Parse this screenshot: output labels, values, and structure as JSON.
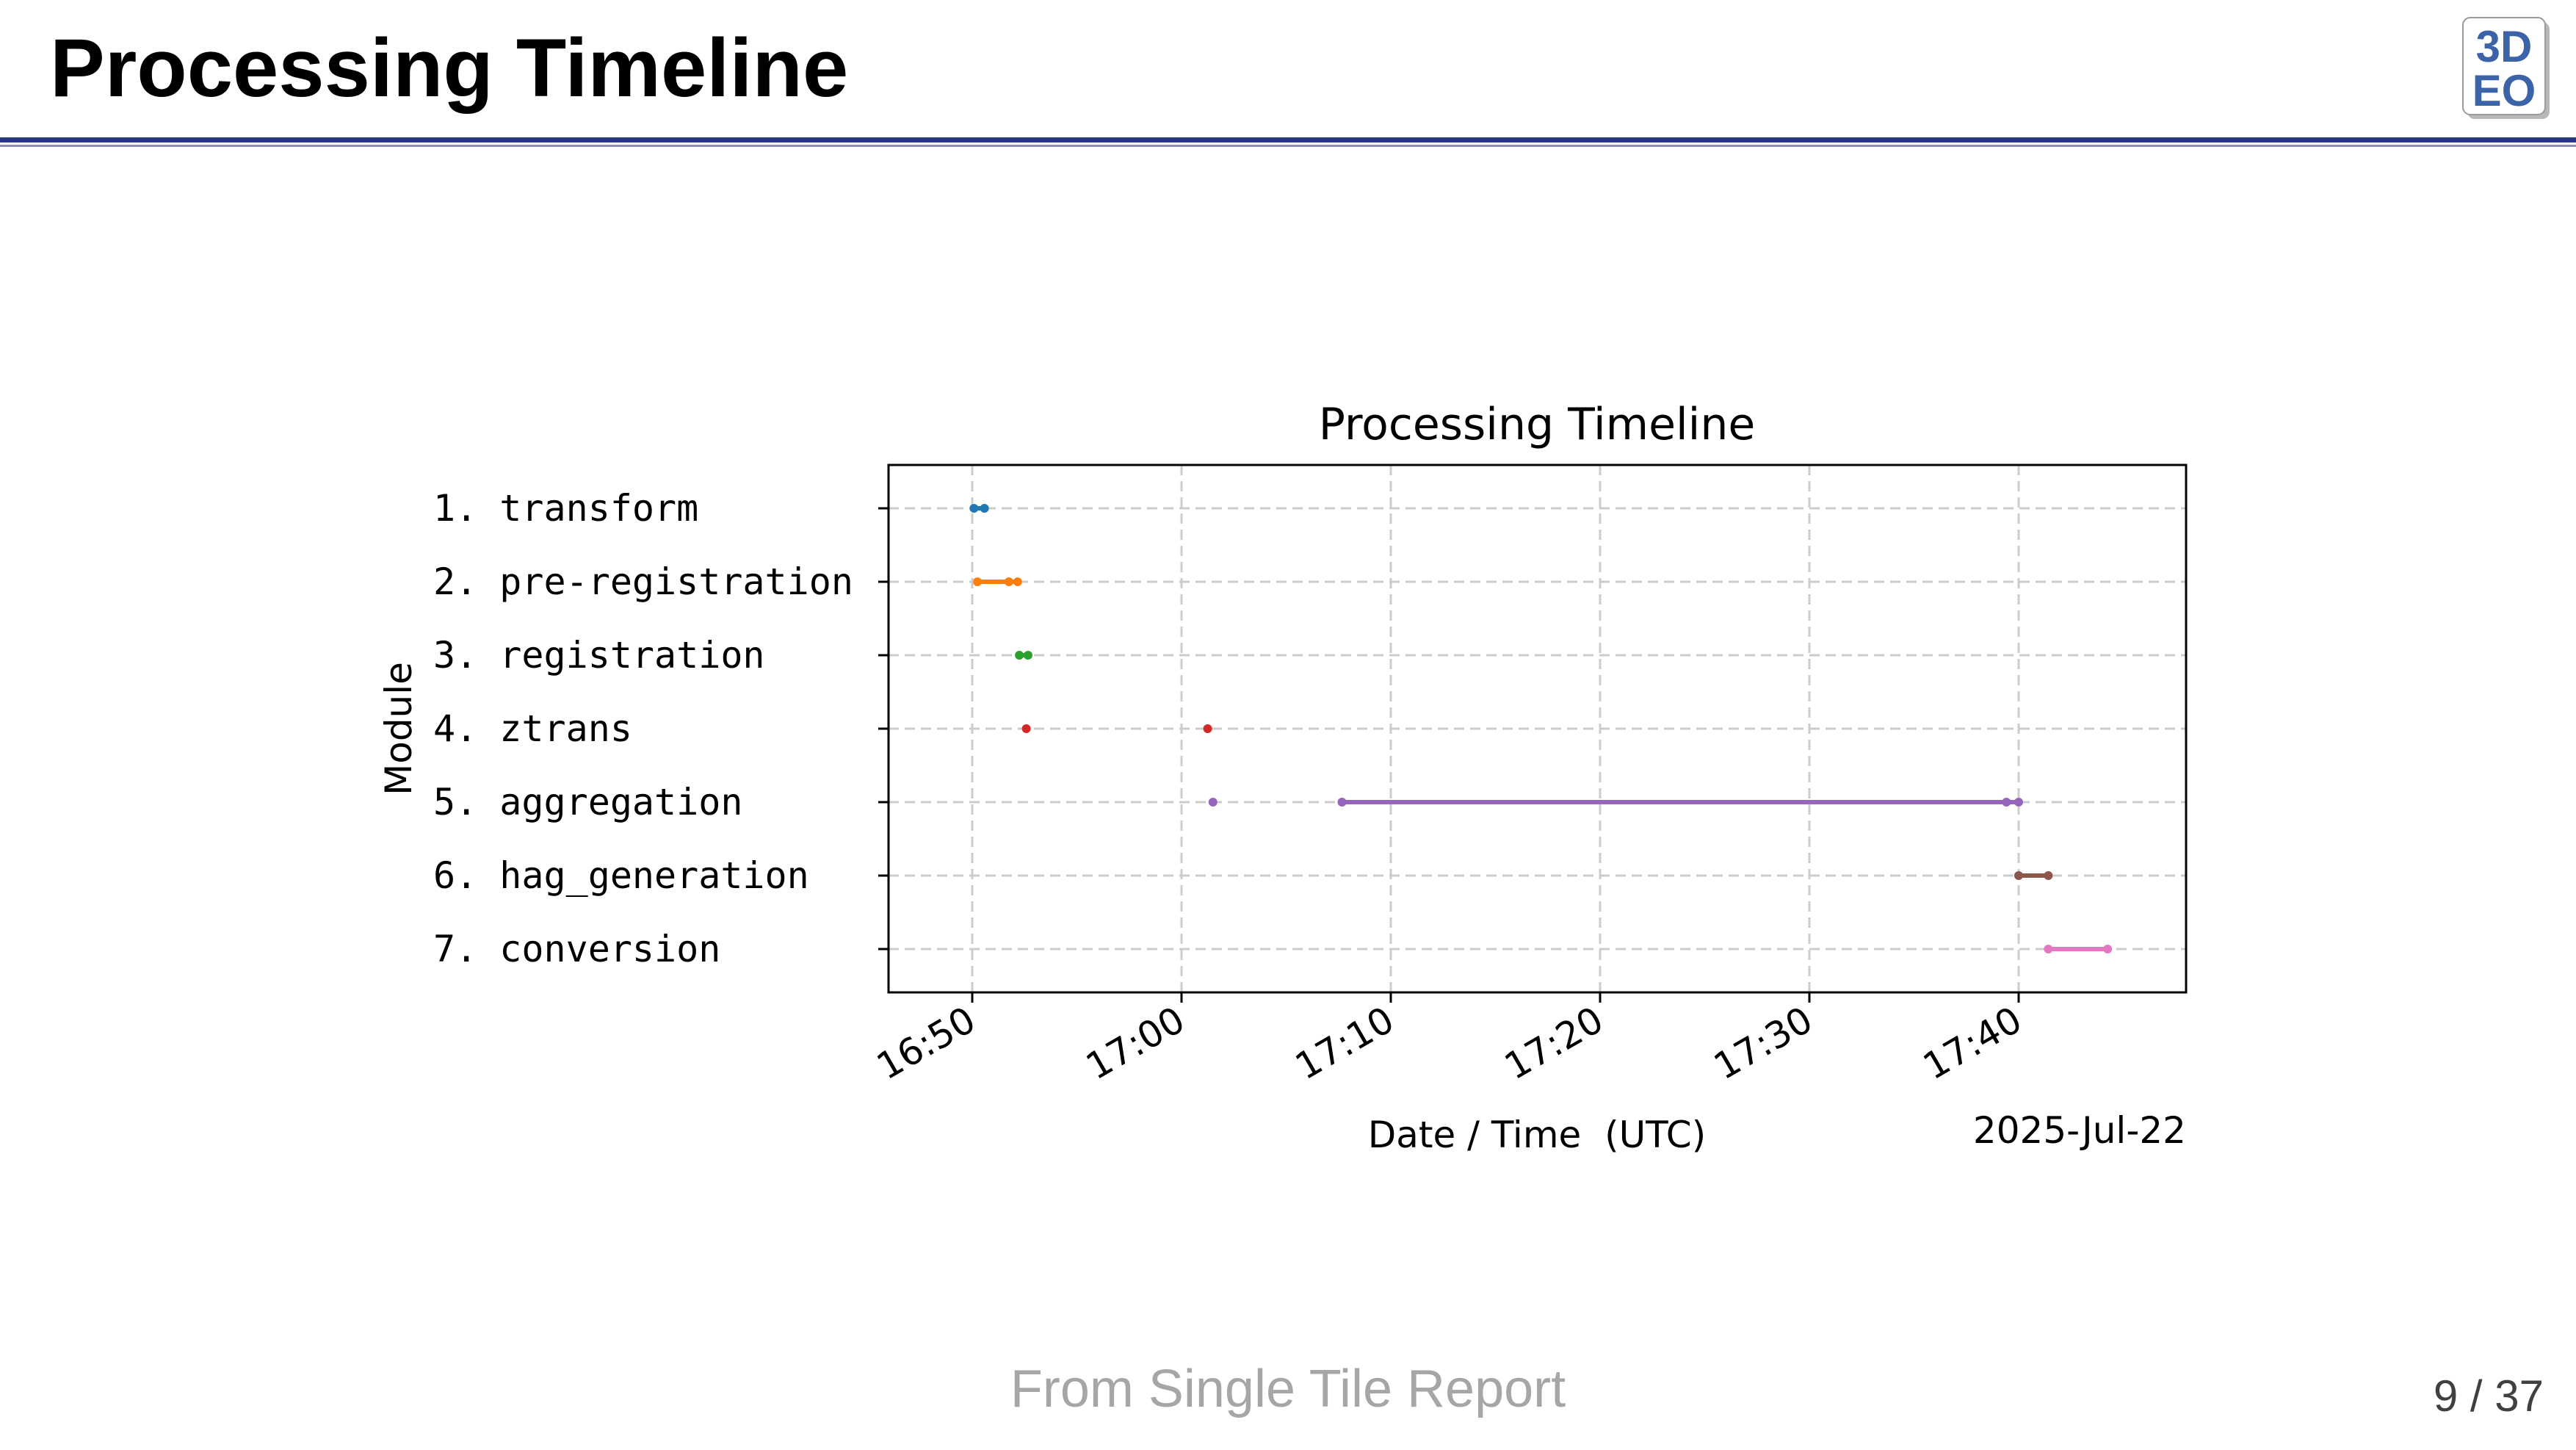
{
  "slide": {
    "title": "Processing Timeline",
    "logo_text_top": "3D",
    "logo_text_bottom": "EO",
    "footer": "From Single Tile Report",
    "page": "9 / 37"
  },
  "chart_data": {
    "type": "timeline",
    "title": "Processing Timeline",
    "xlabel": "Date / Time  (UTC)",
    "ylabel": "Module",
    "date_label": "2025-Jul-22",
    "xlim": [
      "16:46:00",
      "17:48:00"
    ],
    "x_ticks": [
      "16:50",
      "17:00",
      "17:10",
      "17:20",
      "17:30",
      "17:40"
    ],
    "grid": true,
    "categories": [
      "1. transform",
      "2. pre-registration",
      "3. registration",
      "4. ztrans",
      "5. aggregation",
      "6. hag_generation",
      "7. conversion"
    ],
    "series": [
      {
        "color": "#1f77b4",
        "segments": [
          [
            "16:50:05",
            "16:50:35"
          ]
        ],
        "points": [
          "16:50:05",
          "16:50:35"
        ]
      },
      {
        "color": "#ff7f0e",
        "segments": [
          [
            "16:50:15",
            "16:52:10"
          ]
        ],
        "points": [
          "16:50:15",
          "16:51:45",
          "16:52:10"
        ]
      },
      {
        "color": "#2ca02c",
        "segments": [
          [
            "16:52:15",
            "16:52:40"
          ]
        ],
        "points": [
          "16:52:15",
          "16:52:40"
        ]
      },
      {
        "color": "#d62728",
        "segments": [],
        "points": [
          "16:52:35",
          "17:01:15"
        ]
      },
      {
        "color": "#9467bd",
        "segments": [
          [
            "17:07:40",
            "17:40:00"
          ]
        ],
        "points": [
          "17:01:30",
          "17:07:40",
          "17:39:25",
          "17:40:00"
        ]
      },
      {
        "color": "#8c564b",
        "segments": [
          [
            "17:40:00",
            "17:41:25"
          ]
        ],
        "points": [
          "17:40:00",
          "17:41:25"
        ]
      },
      {
        "color": "#e377c2",
        "segments": [
          [
            "17:41:25",
            "17:44:15"
          ]
        ],
        "points": [
          "17:41:25",
          "17:44:15"
        ]
      }
    ]
  }
}
